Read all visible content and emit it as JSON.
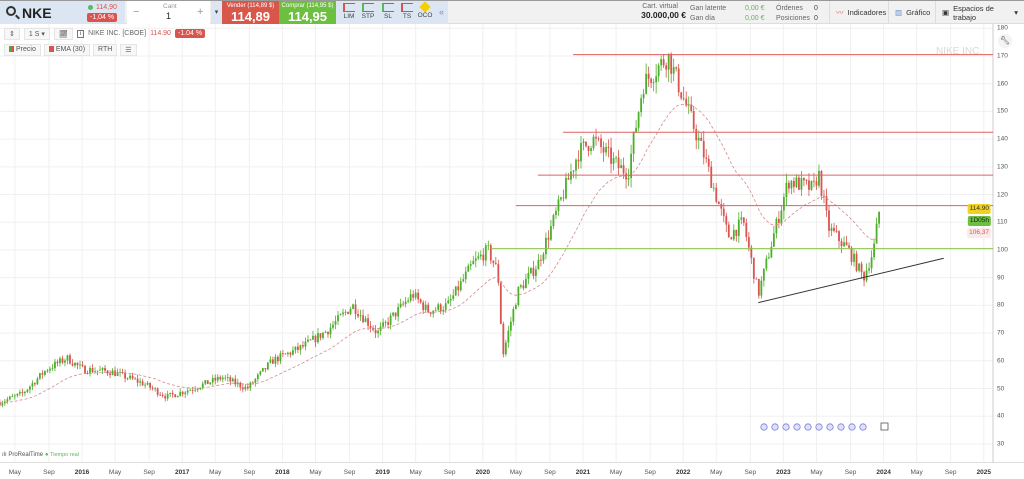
{
  "header": {
    "symbol": "NKE",
    "last": "114,90",
    "change": "-1,04 %",
    "qty_label": "Cant",
    "qty": "1",
    "minus": "−",
    "plus": "+",
    "sell_label": "Vender (114,89 $)",
    "sell_price": "114,89",
    "buy_label": "Comprar (114,95 $)",
    "buy_price": "114,95",
    "order_types": [
      "LIM",
      "STP",
      "SL",
      "TS",
      "OCO"
    ],
    "collapse": "«",
    "cart_label": "Cart. virtual",
    "cart_value": "30.000,00 €",
    "gan_latente_label": "Gan latente",
    "gan_latente": "0,00 €",
    "gan_dia_label": "Gan día",
    "gan_dia": "0,00 €",
    "ordenes_label": "Órdenes",
    "ordenes": "0",
    "posiciones_label": "Posiciones",
    "posiciones": "0",
    "indicadores": "Indicadores",
    "grafico": "Gráfico",
    "espacios": "Espacios de trabajo"
  },
  "toolbar": {
    "period": "1 S",
    "instrument": "NIKE INC. [CBOE]",
    "price": "114.90",
    "change": "-1.04 %",
    "precio": "Precio",
    "ema": "EMA (30)",
    "rth": "RTH"
  },
  "colors": {
    "up": "#4caf2a",
    "down": "#d9534f",
    "ema": "#d88a8a",
    "hline": "#e06060",
    "support": "#8bc34a"
  },
  "chart_data": {
    "type": "candlestick",
    "watermark": "NIKE INC.",
    "ylim": [
      25,
      182
    ],
    "yticks": [
      30,
      40,
      50,
      60,
      70,
      80,
      90,
      100,
      110,
      120,
      130,
      140,
      150,
      160,
      170,
      180
    ],
    "xlim": [
      2015.18,
      2025.3
    ],
    "xticks": [
      {
        "t": 2015.33,
        "l": "May"
      },
      {
        "t": 2015.67,
        "l": "Sep"
      },
      {
        "t": 2016,
        "l": "2016",
        "y": true
      },
      {
        "t": 2016.33,
        "l": "May"
      },
      {
        "t": 2016.67,
        "l": "Sep"
      },
      {
        "t": 2017,
        "l": "2017",
        "y": true
      },
      {
        "t": 2017.33,
        "l": "May"
      },
      {
        "t": 2017.67,
        "l": "Sep"
      },
      {
        "t": 2018,
        "l": "2018",
        "y": true
      },
      {
        "t": 2018.33,
        "l": "May"
      },
      {
        "t": 2018.67,
        "l": "Sep"
      },
      {
        "t": 2019,
        "l": "2019",
        "y": true
      },
      {
        "t": 2019.33,
        "l": "May"
      },
      {
        "t": 2019.67,
        "l": "Sep"
      },
      {
        "t": 2020,
        "l": "2020",
        "y": true
      },
      {
        "t": 2020.33,
        "l": "May"
      },
      {
        "t": 2020.67,
        "l": "Sep"
      },
      {
        "t": 2021,
        "l": "2021",
        "y": true
      },
      {
        "t": 2021.33,
        "l": "May"
      },
      {
        "t": 2021.67,
        "l": "Sep"
      },
      {
        "t": 2022,
        "l": "2022",
        "y": true
      },
      {
        "t": 2022.33,
        "l": "May"
      },
      {
        "t": 2022.67,
        "l": "Sep"
      },
      {
        "t": 2023,
        "l": "2023",
        "y": true
      },
      {
        "t": 2023.33,
        "l": "May"
      },
      {
        "t": 2023.67,
        "l": "Sep"
      },
      {
        "t": 2024,
        "l": "2024",
        "y": true
      },
      {
        "t": 2024.33,
        "l": "May"
      },
      {
        "t": 2024.67,
        "l": "Sep"
      },
      {
        "t": 2025,
        "l": "2025",
        "y": true
      }
    ],
    "price_path": [
      [
        2015.18,
        45
      ],
      [
        2015.4,
        48
      ],
      [
        2015.65,
        57
      ],
      [
        2015.85,
        61
      ],
      [
        2016.0,
        57
      ],
      [
        2016.3,
        56
      ],
      [
        2016.6,
        52
      ],
      [
        2016.85,
        47
      ],
      [
        2017.1,
        50
      ],
      [
        2017.4,
        54
      ],
      [
        2017.65,
        50
      ],
      [
        2017.9,
        60
      ],
      [
        2018.2,
        65
      ],
      [
        2018.45,
        71
      ],
      [
        2018.7,
        80
      ],
      [
        2018.95,
        70
      ],
      [
        2019.3,
        84
      ],
      [
        2019.45,
        78
      ],
      [
        2019.65,
        80
      ],
      [
        2019.9,
        95
      ],
      [
        2020.05,
        100
      ],
      [
        2020.15,
        92
      ],
      [
        2020.2,
        62
      ],
      [
        2020.35,
        85
      ],
      [
        2020.55,
        95
      ],
      [
        2020.75,
        115
      ],
      [
        2020.95,
        135
      ],
      [
        2021.1,
        140
      ],
      [
        2021.35,
        130
      ],
      [
        2021.45,
        128
      ],
      [
        2021.6,
        160
      ],
      [
        2021.85,
        170
      ],
      [
        2022.0,
        155
      ],
      [
        2022.2,
        135
      ],
      [
        2022.45,
        105
      ],
      [
        2022.6,
        110
      ],
      [
        2022.75,
        84
      ],
      [
        2022.9,
        105
      ],
      [
        2023.05,
        125
      ],
      [
        2023.3,
        122
      ],
      [
        2023.35,
        128
      ],
      [
        2023.45,
        108
      ],
      [
        2023.65,
        100
      ],
      [
        2023.8,
        90
      ],
      [
        2023.9,
        100
      ],
      [
        2023.96,
        114.9
      ]
    ],
    "horizontal_lines": [
      {
        "v": 170.5,
        "from": 2020.9,
        "color": "red"
      },
      {
        "v": 142.5,
        "from": 2020.8,
        "color": "red"
      },
      {
        "v": 127,
        "from": 2020.55,
        "color": "red"
      },
      {
        "v": 116,
        "from": 2020.33,
        "color": "red"
      },
      {
        "v": 100.5,
        "from": 2020.08,
        "color": "green"
      }
    ],
    "trendline": [
      [
        2022.75,
        81
      ],
      [
        2024.6,
        97
      ]
    ],
    "last_price": "114.90",
    "countdown": "1D05h",
    "ema_value": "106,37",
    "ema_last": 106.37
  },
  "footer": {
    "brand": "ProRealTime",
    "realtime": "Tiempo real"
  }
}
